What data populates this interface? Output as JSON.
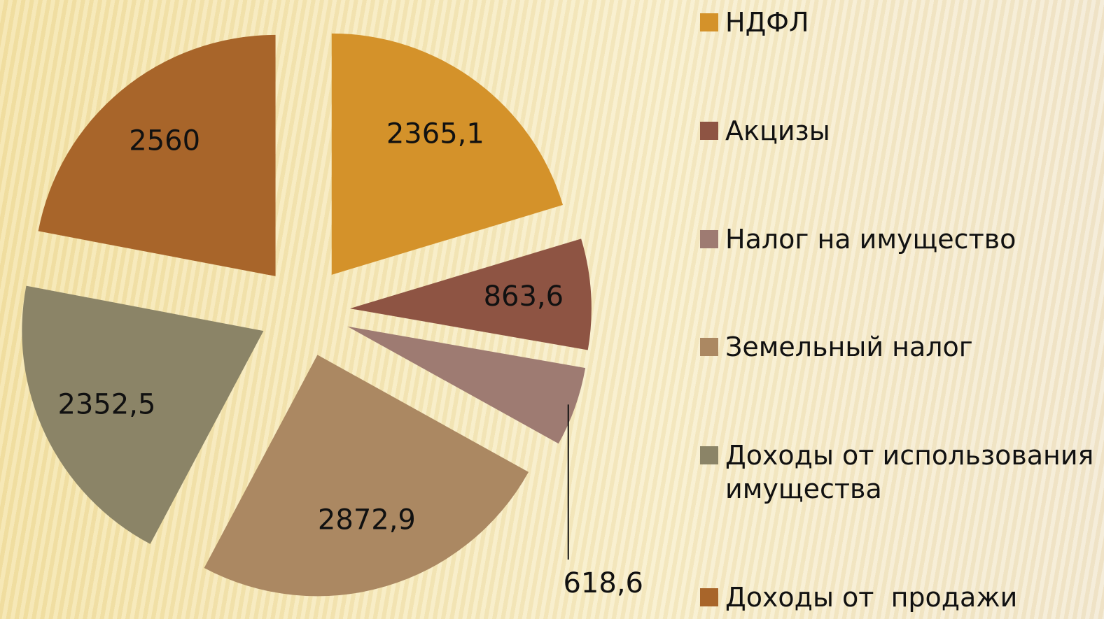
{
  "chart_data": {
    "type": "pie",
    "categories": [
      "НДФЛ",
      "Акцизы",
      "Налог на имущество",
      "Земельный налог",
      "Доходы от использования имущества",
      "Доходы от  продажи"
    ],
    "values": [
      2365.1,
      863.6,
      618.6,
      2872.9,
      2352.5,
      2560
    ],
    "value_labels": [
      "2365,1",
      "863,6",
      "618,6",
      "2872,9",
      "2352,5",
      "2560"
    ],
    "colors": [
      "#d4922a",
      "#8e5443",
      "#9e7b72",
      "#ab8862",
      "#8b8467",
      "#a8652a"
    ],
    "legend": "right"
  }
}
